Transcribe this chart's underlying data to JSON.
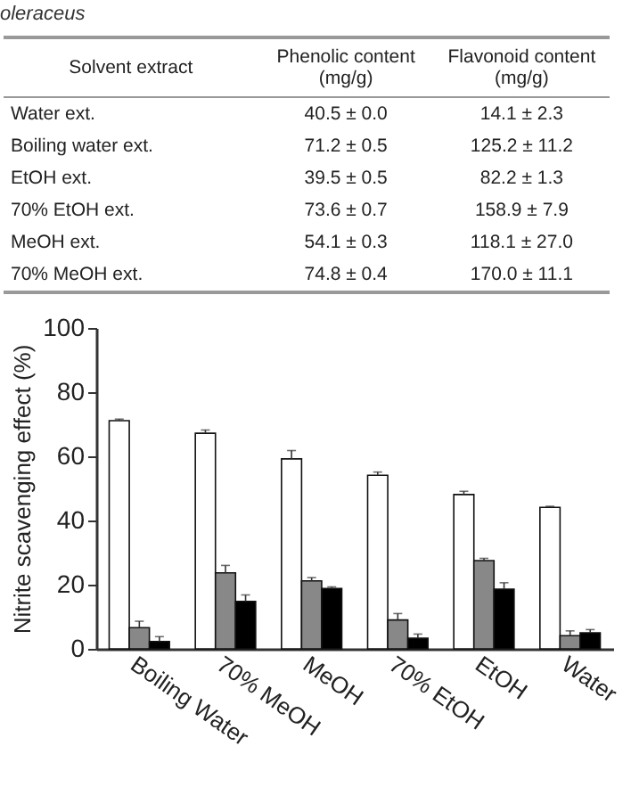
{
  "chart_data": [
    {
      "type": "other",
      "title": "oleraceus",
      "categories": [
        "Solvent extract",
        "Phenolic content (mg/g)",
        "Flavonoid content (mg/g)"
      ],
      "y_categories": [
        "Water ext.",
        "Boiling water ext.",
        "EtOH ext.",
        "70% EtOH ext.",
        "MeOH ext.",
        "70% MeOH ext."
      ],
      "cell_labels": [
        [
          "40.5 ± 0.0",
          "14.1 ± 2.3"
        ],
        [
          "71.2 ± 0.5",
          "125.2 ± 11.2"
        ],
        [
          "39.5 ± 0.5",
          "82.2 ± 1.3"
        ],
        [
          "73.6 ± 0.7",
          "158.9 ± 7.9"
        ],
        [
          "54.1 ± 0.3",
          "118.1 ± 27.0"
        ],
        [
          "74.8 ± 0.4",
          "170.0 ± 11.1"
        ]
      ]
    },
    {
      "type": "bar",
      "ylabel": "Nitrite scavenging effect (%)",
      "categories": [
        "Boiling Water",
        "70% MeOH",
        "MeOH",
        "70% EtOH",
        "EtOH",
        "Water"
      ],
      "series": [
        {
          "color": "#ffffff",
          "values": [
            71.1,
            67.2,
            59.2,
            54.1,
            48.1,
            44.1
          ],
          "errors": [
            0.5,
            1,
            2.6,
            1,
            1,
            0.3
          ]
        },
        {
          "color": "#888888",
          "values": [
            6.6,
            23.7,
            21.2,
            9,
            27.5,
            4.1
          ],
          "errors": [
            2,
            2.3,
            1,
            2,
            0.7,
            1.5
          ]
        },
        {
          "color": "#000000",
          "values": [
            2.3,
            14.8,
            18.8,
            3.3,
            18.6,
            5
          ],
          "errors": [
            1.5,
            2,
            0.5,
            1.3,
            2,
            1
          ]
        }
      ],
      "ylim": [
        0,
        100
      ],
      "yticks": [
        0,
        20,
        40,
        60,
        80,
        100
      ]
    }
  ]
}
